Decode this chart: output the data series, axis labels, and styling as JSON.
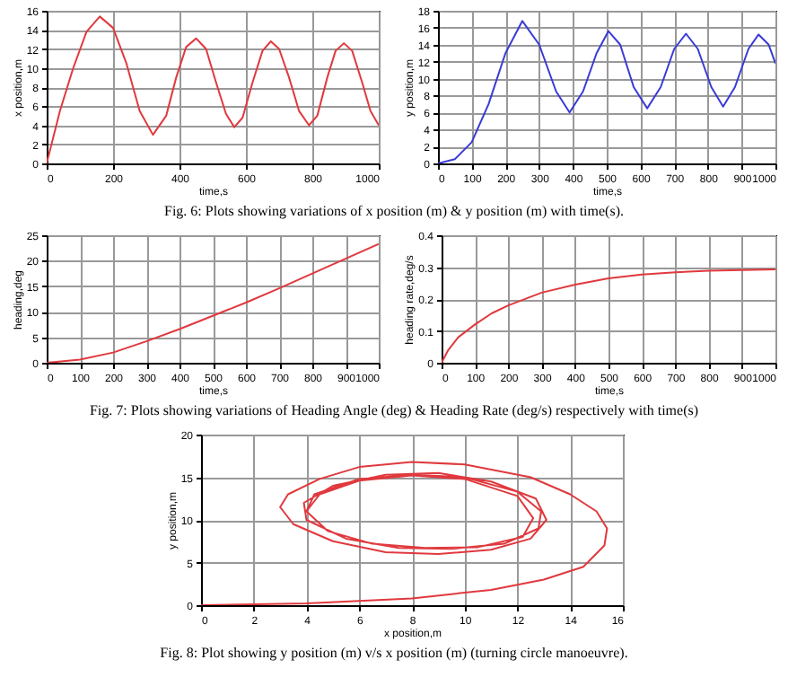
{
  "chart_data": [
    {
      "type": "line",
      "xlabel": "time,s",
      "ylabel": "x position,m",
      "xlim": [
        0,
        1000
      ],
      "ylim": [
        0,
        16
      ],
      "xticks": [
        0,
        200,
        400,
        600,
        800,
        1000
      ],
      "yticks": [
        0,
        2,
        4,
        6,
        8,
        10,
        12,
        14,
        16
      ],
      "grid": true,
      "x": [
        0,
        40,
        80,
        120,
        160,
        200,
        240,
        280,
        320,
        360,
        390,
        420,
        450,
        480,
        510,
        540,
        565,
        590,
        620,
        650,
        675,
        700,
        730,
        760,
        790,
        815,
        845,
        870,
        895,
        920,
        950,
        975,
        1000
      ],
      "series": [
        {
          "color": "#e0393e",
          "values": [
            0,
            5.5,
            10,
            13.8,
            15.4,
            14.2,
            10.5,
            5.5,
            3.0,
            5,
            9,
            12.2,
            13.1,
            12,
            8.5,
            5.2,
            3.8,
            4.8,
            8.5,
            11.8,
            12.8,
            12,
            9,
            5.5,
            4.0,
            5,
            9,
            11.8,
            12.6,
            11.8,
            8.5,
            5.5,
            4
          ]
        }
      ],
      "annotations": [
        "Fig. 6: Plots showing variations of x position (m) & y position (m) with time(s)."
      ]
    },
    {
      "type": "line",
      "xlabel": "time,s",
      "ylabel": "y position,m",
      "xlim": [
        0,
        1000
      ],
      "ylim": [
        0,
        18
      ],
      "xticks": [
        0,
        100,
        200,
        300,
        400,
        500,
        600,
        700,
        800,
        900,
        1000
      ],
      "yticks": [
        0,
        2,
        4,
        6,
        8,
        10,
        12,
        14,
        16,
        18
      ],
      "grid": true,
      "x": [
        0,
        50,
        100,
        150,
        200,
        250,
        300,
        350,
        390,
        430,
        470,
        505,
        540,
        580,
        620,
        660,
        700,
        735,
        770,
        810,
        845,
        880,
        920,
        950,
        980,
        1000
      ],
      "series": [
        {
          "color": "#3a3ad8",
          "values": [
            0,
            0.5,
            2.5,
            7,
            13,
            16.8,
            14,
            8.5,
            6,
            8.5,
            13,
            15.6,
            14,
            9,
            6.5,
            9,
            13.5,
            15.3,
            13.5,
            9,
            6.7,
            9,
            13.5,
            15.2,
            14,
            11.8
          ]
        }
      ]
    },
    {
      "type": "line",
      "xlabel": "time,s",
      "ylabel": "heading,deg",
      "xlim": [
        0,
        1000
      ],
      "ylim": [
        0,
        25
      ],
      "xticks": [
        0,
        100,
        200,
        300,
        400,
        500,
        600,
        700,
        800,
        900,
        1000
      ],
      "yticks": [
        0,
        5,
        10,
        15,
        20,
        25
      ],
      "grid": true,
      "x": [
        0,
        100,
        200,
        300,
        400,
        500,
        600,
        700,
        800,
        900,
        1000
      ],
      "series": [
        {
          "color": "#e0393e",
          "values": [
            0,
            0.6,
            2,
            4.2,
            6.6,
            9.2,
            11.8,
            14.6,
            17.5,
            20.4,
            23.3
          ]
        }
      ],
      "annotations": [
        "Fig. 7: Plots showing variations of Heading Angle (deg) & Heading Rate (deg/s)  respectively with time(s)"
      ]
    },
    {
      "type": "line",
      "xlabel": "time,s",
      "ylabel": "heading rate,deg/s",
      "xlim": [
        0,
        1000
      ],
      "ylim": [
        0,
        0.4
      ],
      "xticks": [
        0,
        100,
        200,
        300,
        400,
        500,
        600,
        700,
        800,
        900,
        1000
      ],
      "yticks": [
        0,
        0.1,
        0.2,
        0.3,
        0.4
      ],
      "grid": true,
      "x": [
        0,
        20,
        50,
        100,
        150,
        200,
        300,
        400,
        500,
        600,
        700,
        800,
        900,
        1000
      ],
      "series": [
        {
          "color": "#e0393e",
          "values": [
            0,
            0.04,
            0.08,
            0.12,
            0.155,
            0.18,
            0.22,
            0.245,
            0.265,
            0.277,
            0.284,
            0.289,
            0.291,
            0.293
          ]
        }
      ]
    },
    {
      "type": "line",
      "xlabel": "x position,m",
      "ylabel": "y position,m",
      "xlim": [
        0,
        16
      ],
      "ylim": [
        0,
        20
      ],
      "xticks": [
        0,
        2,
        4,
        6,
        8,
        10,
        12,
        14,
        16
      ],
      "yticks": [
        0,
        5,
        10,
        15,
        20
      ],
      "grid": true,
      "series": [
        {
          "color": "#e0393e",
          "x": [
            0,
            4,
            8,
            11,
            13,
            14.5,
            15.3,
            15.4,
            15,
            14,
            12.5,
            10,
            8,
            6,
            4.5,
            3.3,
            3,
            3.5,
            5,
            7,
            9,
            11,
            12.5,
            13.1,
            12.7,
            11,
            9,
            7,
            5,
            3.9,
            4,
            5.5,
            7.5,
            9.5,
            11.5,
            12.8,
            12.9,
            12,
            10,
            8,
            6,
            4.3,
            4,
            4.8,
            6.5,
            8.5,
            10.5,
            12.2,
            12.6,
            12,
            10,
            8,
            6,
            4.5,
            4
          ],
          "values": [
            0,
            0.2,
            0.8,
            1.8,
            3,
            4.5,
            7,
            9,
            11,
            13,
            15,
            16.5,
            16.8,
            16.2,
            14.8,
            13,
            11.5,
            9.5,
            7.5,
            6.2,
            6,
            6.5,
            7.8,
            10,
            12.5,
            14.5,
            15.5,
            15.3,
            14,
            12,
            10,
            7.8,
            6.7,
            6.6,
            7.2,
            9,
            11,
            13.3,
            15,
            15.3,
            14.8,
            13,
            11,
            8.7,
            7.2,
            6.7,
            6.8,
            8,
            10.2,
            12.8,
            14.8,
            15.2,
            14.6,
            13,
            11
          ]
        }
      ],
      "annotations": [
        "Fig. 8: Plot showing y position (m) v/s x position (m) (turning circle manoeuvre)."
      ]
    }
  ]
}
